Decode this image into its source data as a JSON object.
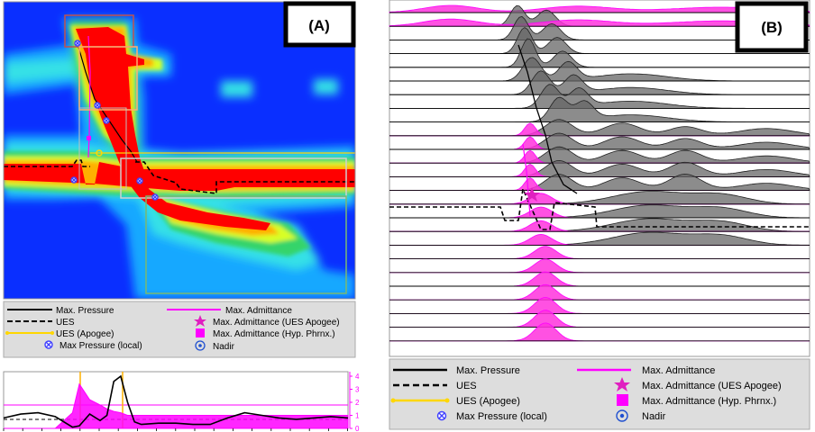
{
  "panel_a": {
    "tag": "(A)",
    "legend": {
      "max_pressure": "Max. Pressure",
      "ues": "UES",
      "ues_apogee": "UES (Apogee)",
      "max_pressure_local": "Max Pressure (local)",
      "max_admittance": "Max. Admittance",
      "max_admittance_ues_apogee": "Max. Admittance (UES Apogee)",
      "max_admittance_hyp_phrnx": "Max. Admittance (Hyp. Phrnx.)",
      "nadir": "Nadir"
    },
    "right_ticks": [
      "4",
      "3",
      "2",
      "1",
      "0"
    ],
    "colors": {
      "pressure": "#000000",
      "admittance": "#ff00ff",
      "apogee": "#ffd700",
      "marker": "#4040ff"
    }
  },
  "panel_b": {
    "tag": "(B)",
    "legend": {
      "max_pressure": "Max. Pressure",
      "ues": "UES",
      "ues_apogee": "UES (Apogee)",
      "max_pressure_local": "Max Pressure (local)",
      "max_admittance": "Max. Admittance",
      "max_admittance_ues_apogee": "Max. Admittance (UES Apogee)",
      "max_admittance_hyp_phrnx": "Max. Admittance (Hyp. Phrnx.)",
      "nadir": "Nadir"
    }
  },
  "chart_data": [
    {
      "type": "heatmap",
      "panel": "A",
      "title": "",
      "legend": [
        "Max. Pressure",
        "UES",
        "UES (Apogee)",
        "Max Pressure (local)",
        "Max. Admittance",
        "Max. Admittance (UES Apogee)",
        "Max. Admittance (Hyp. Phrnx.)",
        "Nadir"
      ],
      "colormap": [
        "#0a2fff",
        "#19a8ff",
        "#36e1e6",
        "#35d46a",
        "#d8ff26",
        "#ffb000",
        "#ff0000"
      ]
    },
    {
      "type": "line",
      "panel": "A-inset",
      "xlabel": "",
      "ylabel": "",
      "y2_ticks": [
        0,
        1,
        2,
        3,
        4
      ],
      "y2lim": [
        0,
        4
      ],
      "x": [
        0,
        0.05,
        0.1,
        0.15,
        0.2,
        0.22,
        0.25,
        0.28,
        0.3,
        0.32,
        0.34,
        0.36,
        0.38,
        0.4,
        0.45,
        0.5,
        0.55,
        0.6,
        0.65,
        0.7,
        0.75,
        0.8,
        0.85,
        0.9,
        0.95,
        1.0
      ],
      "series": [
        {
          "name": "Max. Pressure",
          "values": [
            0.8,
            1.1,
            1.2,
            0.9,
            0.1,
            0.2,
            1.1,
            0.6,
            1.0,
            3.6,
            4.0,
            2.0,
            0.5,
            0.3,
            0.4,
            0.4,
            0.3,
            0.3,
            0.8,
            1.2,
            1.0,
            0.8,
            0.7,
            0.8,
            0.9,
            0.8
          ]
        },
        {
          "name": "Max. Admittance",
          "values": [
            0,
            0,
            0,
            0,
            1.2,
            3.4,
            2.2,
            1.8,
            1.5,
            1.3,
            1.2,
            1.0,
            1.0,
            1.0,
            1.0,
            1.0,
            1.0,
            1.0,
            1.0,
            1.0,
            1.0,
            1.0,
            1.0,
            1.0,
            1.0,
            1.0
          ]
        }
      ]
    },
    {
      "type": "area",
      "panel": "B",
      "title": "",
      "legend": [
        "Max. Pressure",
        "UES",
        "UES (Apogee)",
        "Max Pressure (local)",
        "Max. Admittance",
        "Max. Admittance (UES Apogee)",
        "Max. Admittance (Hyp. Phrnx.)",
        "Nadir"
      ],
      "rows": 25
    }
  ]
}
